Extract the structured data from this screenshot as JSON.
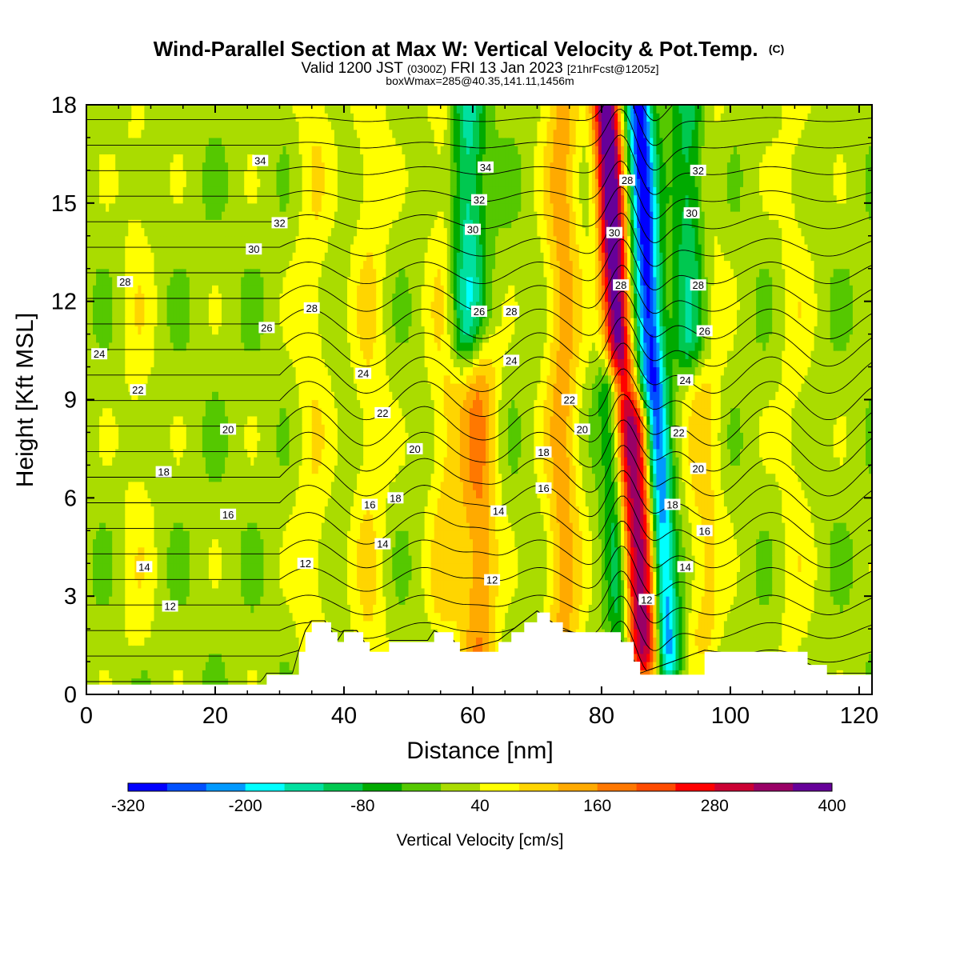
{
  "header": {
    "title": "Wind-Parallel Section at Max W: Vertical Velocity & Pot.Temp.",
    "title_mark": "(C)",
    "valid_prefix": "Valid 1200 JST",
    "valid_zulu": "(0300Z)",
    "valid_date": "FRI 13 Jan 2023",
    "valid_fcst": "[21hrFcst@1205z]",
    "box_info": "boxWmax=285@40.35,141.11,1456m"
  },
  "chart_data": {
    "type": "contour-section",
    "xlabel": "Distance [nm]",
    "ylabel": "Height [Kft MSL]",
    "xlim": [
      0,
      122
    ],
    "ylim": [
      0,
      18
    ],
    "x_ticks": [
      0,
      20,
      40,
      60,
      80,
      100,
      120
    ],
    "y_ticks": [
      0,
      3,
      6,
      9,
      12,
      15,
      18
    ],
    "colorbar": {
      "label": "Vertical Velocity [cm/s]",
      "tick_labels": [
        "-320",
        "-200",
        "-80",
        "40",
        "160",
        "280",
        "400"
      ],
      "colors": [
        "#0000ff",
        "#0050ff",
        "#0099ff",
        "#00ffff",
        "#00e0a0",
        "#00c850",
        "#00aa00",
        "#55c800",
        "#aadc00",
        "#ffff00",
        "#ffd500",
        "#ffaa00",
        "#ff7800",
        "#ff4b00",
        "#ff0000",
        "#cc0033",
        "#990066",
        "#660099"
      ]
    },
    "w_features": [
      {
        "x": 8,
        "h_min": 2,
        "h_max": 17,
        "w": 40
      },
      {
        "x": 35,
        "h_min": 1.5,
        "h_max": 18,
        "w": 55
      },
      {
        "x": 44,
        "h_min": 2,
        "h_max": 18,
        "w": 60
      },
      {
        "x": 56,
        "h_min": 3,
        "h_max": 18,
        "w": 80
      },
      {
        "x": 61,
        "h_min": 1,
        "h_max": 10,
        "w": 140
      },
      {
        "x": 74,
        "h_min": 2,
        "h_max": 18,
        "w": 120
      },
      {
        "x": 83,
        "h_min": 1.5,
        "h_max": 18,
        "w": 400
      },
      {
        "x": 88,
        "h_min": 1.5,
        "h_max": 18,
        "w": -320
      },
      {
        "x": 82,
        "h_min": 1.5,
        "h_max": 9,
        "w": -300
      },
      {
        "x": 86,
        "h_min": 1.5,
        "h_max": 8,
        "w": 285
      },
      {
        "x": 96,
        "h_min": 2,
        "h_max": 18,
        "w": 80
      },
      {
        "x": 110,
        "h_min": 1,
        "h_max": 18,
        "w": 40
      },
      {
        "x": 59,
        "h_min": 11,
        "h_max": 18,
        "w": -180
      },
      {
        "x": 94,
        "h_min": 11,
        "h_max": 18,
        "w": -160
      }
    ],
    "terrain": [
      {
        "x": 0,
        "h": 0.3
      },
      {
        "x": 27,
        "h": 0.3
      },
      {
        "x": 28,
        "h": 0.6
      },
      {
        "x": 32,
        "h": 0.6
      },
      {
        "x": 33,
        "h": 1.3
      },
      {
        "x": 34,
        "h": 1.9
      },
      {
        "x": 35,
        "h": 2.2
      },
      {
        "x": 37,
        "h": 2.2
      },
      {
        "x": 38,
        "h": 1.9
      },
      {
        "x": 39,
        "h": 1.6
      },
      {
        "x": 40,
        "h": 1.9
      },
      {
        "x": 42,
        "h": 1.9
      },
      {
        "x": 43,
        "h": 1.6
      },
      {
        "x": 44,
        "h": 1.3
      },
      {
        "x": 47,
        "h": 1.6
      },
      {
        "x": 53,
        "h": 1.6
      },
      {
        "x": 54,
        "h": 1.9
      },
      {
        "x": 57,
        "h": 1.6
      },
      {
        "x": 58,
        "h": 1.3
      },
      {
        "x": 64,
        "h": 1.6
      },
      {
        "x": 66,
        "h": 1.9
      },
      {
        "x": 68,
        "h": 2.2
      },
      {
        "x": 70,
        "h": 2.5
      },
      {
        "x": 72,
        "h": 2.2
      },
      {
        "x": 74,
        "h": 1.9
      },
      {
        "x": 83,
        "h": 1.6
      },
      {
        "x": 85,
        "h": 1.0
      },
      {
        "x": 86,
        "h": 0.6
      },
      {
        "x": 96,
        "h": 1.3
      },
      {
        "x": 112,
        "h": 0.9
      },
      {
        "x": 115,
        "h": 0.6
      },
      {
        "x": 122,
        "h": 0.6
      }
    ],
    "theta_levels": [
      11,
      12,
      13,
      14,
      15,
      16,
      17,
      18,
      19,
      20,
      21,
      22,
      23,
      24,
      25,
      26,
      27,
      28,
      29,
      30,
      31,
      32,
      33,
      34,
      35,
      36
    ],
    "contour_labels": [
      {
        "x": 27,
        "y": 16.3,
        "text": "34"
      },
      {
        "x": 30,
        "y": 14.4,
        "text": "32"
      },
      {
        "x": 26,
        "y": 13.6,
        "text": "30"
      },
      {
        "x": 6,
        "y": 12.6,
        "text": "28"
      },
      {
        "x": 35,
        "y": 11.8,
        "text": "28"
      },
      {
        "x": 28,
        "y": 11.2,
        "text": "26"
      },
      {
        "x": 2,
        "y": 10.4,
        "text": "24"
      },
      {
        "x": 8,
        "y": 9.3,
        "text": "22"
      },
      {
        "x": 22,
        "y": 8.1,
        "text": "20"
      },
      {
        "x": 12,
        "y": 6.8,
        "text": "18"
      },
      {
        "x": 22,
        "y": 5.5,
        "text": "16"
      },
      {
        "x": 9,
        "y": 3.9,
        "text": "14"
      },
      {
        "x": 13,
        "y": 2.7,
        "text": "12"
      },
      {
        "x": 34,
        "y": 4.0,
        "text": "12"
      },
      {
        "x": 43,
        "y": 9.8,
        "text": "24"
      },
      {
        "x": 46,
        "y": 8.6,
        "text": "22"
      },
      {
        "x": 51,
        "y": 7.5,
        "text": "20"
      },
      {
        "x": 48,
        "y": 6.0,
        "text": "18"
      },
      {
        "x": 44,
        "y": 5.8,
        "text": "16"
      },
      {
        "x": 46,
        "y": 4.6,
        "text": "14"
      },
      {
        "x": 62,
        "y": 16.1,
        "text": "34"
      },
      {
        "x": 61,
        "y": 15.1,
        "text": "32"
      },
      {
        "x": 60,
        "y": 14.2,
        "text": "30"
      },
      {
        "x": 61,
        "y": 11.7,
        "text": "26"
      },
      {
        "x": 66,
        "y": 11.7,
        "text": "28"
      },
      {
        "x": 66,
        "y": 10.2,
        "text": "24"
      },
      {
        "x": 64,
        "y": 5.6,
        "text": "14"
      },
      {
        "x": 63,
        "y": 3.5,
        "text": "12"
      },
      {
        "x": 71,
        "y": 7.4,
        "text": "18"
      },
      {
        "x": 71,
        "y": 6.3,
        "text": "16"
      },
      {
        "x": 75,
        "y": 9.0,
        "text": "22"
      },
      {
        "x": 77,
        "y": 8.1,
        "text": "20"
      },
      {
        "x": 84,
        "y": 15.7,
        "text": "28"
      },
      {
        "x": 82,
        "y": 14.1,
        "text": "30"
      },
      {
        "x": 83,
        "y": 12.5,
        "text": "28"
      },
      {
        "x": 95,
        "y": 16.0,
        "text": "32"
      },
      {
        "x": 94,
        "y": 14.7,
        "text": "30"
      },
      {
        "x": 95,
        "y": 12.5,
        "text": "28"
      },
      {
        "x": 96,
        "y": 11.1,
        "text": "26"
      },
      {
        "x": 93,
        "y": 9.6,
        "text": "24"
      },
      {
        "x": 92,
        "y": 8.0,
        "text": "22"
      },
      {
        "x": 95,
        "y": 6.9,
        "text": "20"
      },
      {
        "x": 91,
        "y": 5.8,
        "text": "18"
      },
      {
        "x": 96,
        "y": 5.0,
        "text": "16"
      },
      {
        "x": 93,
        "y": 3.9,
        "text": "14"
      },
      {
        "x": 87,
        "y": 2.9,
        "text": "12"
      }
    ]
  }
}
